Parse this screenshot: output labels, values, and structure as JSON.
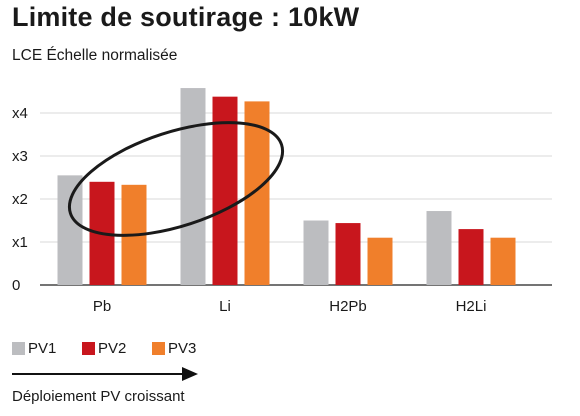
{
  "title": "Limite de soutirage : 10kW",
  "footnote": "Déploiement PV croissant",
  "chart_data": {
    "type": "bar",
    "title": "Limite de soutirage : 10kW",
    "xlabel": "",
    "ylabel": "LCE Échelle normalisée",
    "categories": [
      "Pb",
      "Li",
      "H2Pb",
      "H2Li"
    ],
    "yticks": [
      {
        "value": 0,
        "label": "0"
      },
      {
        "value": 1,
        "label": "x1"
      },
      {
        "value": 2,
        "label": "x2"
      },
      {
        "value": 3,
        "label": "x3"
      },
      {
        "value": 4,
        "label": "x4"
      }
    ],
    "ylim": [
      0,
      4.7
    ],
    "grid": true,
    "legend": "bottom-left",
    "series": [
      {
        "name": "PV1",
        "color": "#bcbdc0",
        "values": [
          2.55,
          4.58,
          1.5,
          1.72
        ]
      },
      {
        "name": "PV2",
        "color": "#c8161d",
        "values": [
          2.4,
          4.38,
          1.44,
          1.3
        ]
      },
      {
        "name": "PV3",
        "color": "#f07f2b",
        "values": [
          2.33,
          4.27,
          1.1,
          1.1
        ]
      }
    ],
    "annotations": [
      {
        "type": "ellipse",
        "description": "highlights Pb and Li groups"
      }
    ]
  }
}
